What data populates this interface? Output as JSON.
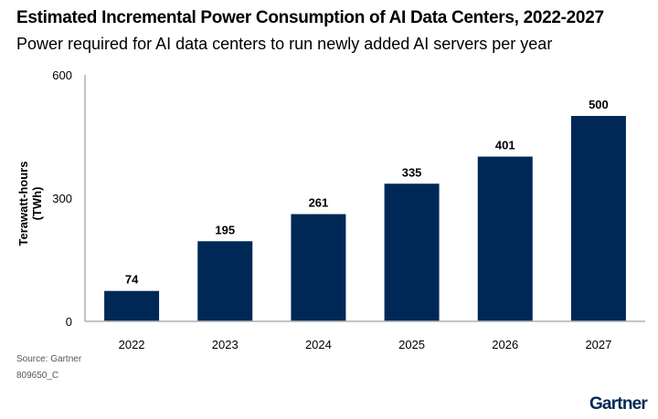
{
  "chart_data": {
    "type": "bar",
    "title": "Estimated Incremental Power Consumption of AI Data Centers, 2022-2027",
    "subtitle": "Power required for AI data centers to run newly added AI servers per year",
    "xlabel": "",
    "ylabel": "Terawatt-hours (TWh)",
    "categories": [
      "2022",
      "2023",
      "2024",
      "2025",
      "2026",
      "2027"
    ],
    "values": [
      74,
      195,
      261,
      335,
      401,
      500
    ],
    "data_labels": [
      "74",
      "195",
      "261",
      "335",
      "401",
      "500"
    ],
    "ylim": [
      0,
      600
    ],
    "yticks": [
      0,
      300,
      600
    ],
    "grid": false,
    "legend": "none",
    "bar_color": "#002856"
  },
  "footer": {
    "source": "Source: Gartner",
    "code": "809650_C",
    "logo": "Gartner"
  }
}
